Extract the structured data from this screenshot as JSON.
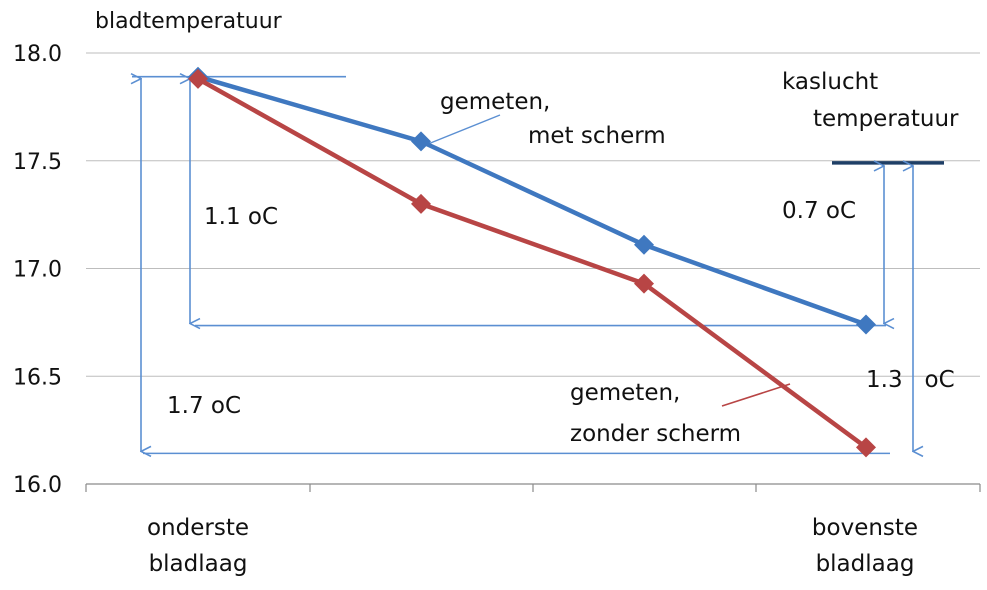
{
  "colors": {
    "blue_series": "#3f78c0",
    "red_series": "#b84545",
    "annotation_line": "#5b8fd2",
    "air_temp_line": "#1f3f66",
    "grid": "#bdbdbd",
    "axis": "#8a8a8a"
  },
  "chart_data": {
    "type": "line",
    "title": "",
    "ylabel": "bladtemperatuur",
    "xlabel": "",
    "ylim": [
      16.0,
      18.0
    ],
    "yticks": [
      "16.0",
      "16.5",
      "17.0",
      "17.5",
      "18.0"
    ],
    "grid": true,
    "categories": [
      "onderste bladlaag",
      "",
      "",
      "bovenste bladlaag"
    ],
    "category_labels": [
      [
        "onderste",
        "bladlaag"
      ],
      [
        "",
        ""
      ],
      [
        "",
        ""
      ],
      [
        "bovenste",
        "bladlaag"
      ]
    ],
    "series": [
      {
        "name": "gemeten, met scherm",
        "color": "#3f78c0",
        "values": [
          17.89,
          17.59,
          17.11,
          16.74
        ]
      },
      {
        "name": "gemeten, zonder scherm",
        "color": "#b84545",
        "values": [
          17.88,
          17.3,
          16.93,
          16.17
        ]
      }
    ],
    "reference": {
      "label_lines": [
        "kaslucht",
        "temperatuur"
      ],
      "value": 17.49
    },
    "annotations": {
      "label_met_scherm": [
        "gemeten,",
        "met scherm"
      ],
      "label_zonder_scherm": [
        "gemeten,",
        "zonder scherm"
      ],
      "diff_1_1": "1.1 oC",
      "diff_1_7": "1.7 oC",
      "diff_0_7": "0.7 oC",
      "diff_1_3": "1.3   oC"
    }
  }
}
